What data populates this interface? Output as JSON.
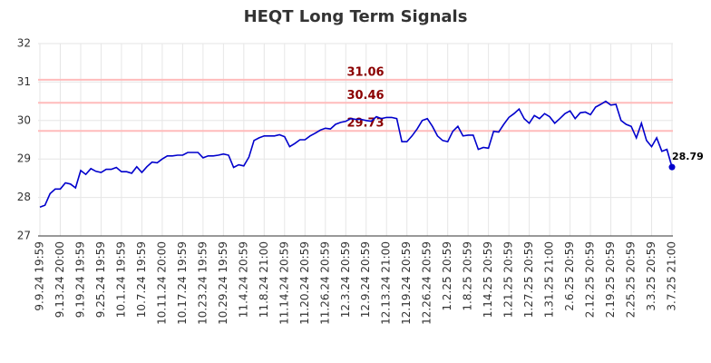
{
  "chart_data": {
    "type": "line",
    "title": "HEQT Long Term Signals",
    "categories": [
      "9.9.24 19:59",
      null,
      null,
      null,
      "9.13.24 20:00",
      null,
      null,
      null,
      "9.19.24 19:59",
      null,
      null,
      null,
      "9.25.24 19:59",
      null,
      null,
      null,
      "10.1.24 19:59",
      null,
      null,
      null,
      "10.7.24 19:59",
      null,
      null,
      null,
      "10.11.24 20:00",
      null,
      null,
      null,
      "10.17.24 19:59",
      null,
      null,
      null,
      "10.23.24 19:59",
      null,
      null,
      null,
      "10.29.24 19:59",
      null,
      null,
      null,
      "11.4.24 20:59",
      null,
      null,
      null,
      "11.8.24 21:00",
      null,
      null,
      null,
      "11.14.24 20:59",
      null,
      null,
      null,
      "11.20.24 20:59",
      null,
      null,
      null,
      "11.26.24 20:59",
      null,
      null,
      null,
      "12.3.24 20:59",
      null,
      null,
      null,
      "12.9.24 20:59",
      null,
      null,
      null,
      "12.13.24 21:00",
      null,
      null,
      null,
      "12.19.24 20:59",
      null,
      null,
      null,
      "12.26.24 20:59",
      null,
      null,
      null,
      "1.2.25 20:59",
      null,
      null,
      null,
      "1.8.25 20:59",
      null,
      null,
      null,
      "1.14.25 20:59",
      null,
      null,
      null,
      "1.21.25 20:59",
      null,
      null,
      null,
      "1.27.25 20:59",
      null,
      null,
      null,
      "1.31.25 21:00",
      null,
      null,
      null,
      "2.6.25 20:59",
      null,
      null,
      null,
      "2.12.25 20:59",
      null,
      null,
      null,
      "2.19.25 20:59",
      null,
      null,
      null,
      "2.25.25 20:59",
      null,
      null,
      null,
      "3.3.25 20:59",
      null,
      null,
      null,
      "3.7.25 21:00"
    ],
    "series": [
      {
        "color": "#0000cc",
        "values": [
          27.75,
          27.8,
          28.1,
          28.22,
          28.22,
          28.38,
          28.35,
          28.25,
          28.7,
          28.6,
          28.75,
          28.68,
          28.65,
          28.73,
          28.73,
          28.78,
          28.67,
          28.67,
          28.63,
          28.8,
          28.65,
          28.8,
          28.92,
          28.9,
          29.0,
          29.08,
          29.08,
          29.1,
          29.1,
          29.17,
          29.17,
          29.17,
          29.03,
          29.08,
          29.08,
          29.1,
          29.13,
          29.1,
          28.78,
          28.85,
          28.82,
          29.05,
          29.48,
          29.55,
          29.6,
          29.6,
          29.6,
          29.63,
          29.58,
          29.32,
          29.4,
          29.5,
          29.5,
          29.6,
          29.67,
          29.75,
          29.8,
          29.78,
          29.9,
          29.95,
          29.98,
          30.05,
          30.03,
          30.03,
          30.0,
          29.98,
          30.1,
          30.05,
          30.08,
          30.08,
          30.05,
          29.45,
          29.45,
          29.6,
          29.78,
          30.0,
          30.05,
          29.85,
          29.6,
          29.48,
          29.45,
          29.72,
          29.85,
          29.6,
          29.62,
          29.62,
          29.25,
          29.3,
          29.28,
          29.72,
          29.7,
          29.9,
          30.08,
          30.18,
          30.3,
          30.05,
          29.93,
          30.13,
          30.05,
          30.18,
          30.1,
          29.93,
          30.05,
          30.18,
          30.25,
          30.05,
          30.2,
          30.22,
          30.15,
          30.35,
          30.42,
          30.5,
          30.4,
          30.42,
          30.0,
          29.9,
          29.85,
          29.55,
          29.93,
          29.48,
          29.32,
          29.55,
          29.2,
          29.25,
          28.79
        ]
      }
    ],
    "reference_lines": [
      {
        "value": 31.06,
        "color": "#ffbbbb",
        "label_color": "#8b0000"
      },
      {
        "value": 30.46,
        "color": "#ffbbbb",
        "label_color": "#8b0000"
      },
      {
        "value": 29.73,
        "color": "#ffbbbb",
        "label_color": "#8b0000"
      }
    ],
    "ylim": [
      27,
      32
    ],
    "yticks": [
      27,
      28,
      29,
      30,
      31,
      32
    ],
    "grid": true
  }
}
